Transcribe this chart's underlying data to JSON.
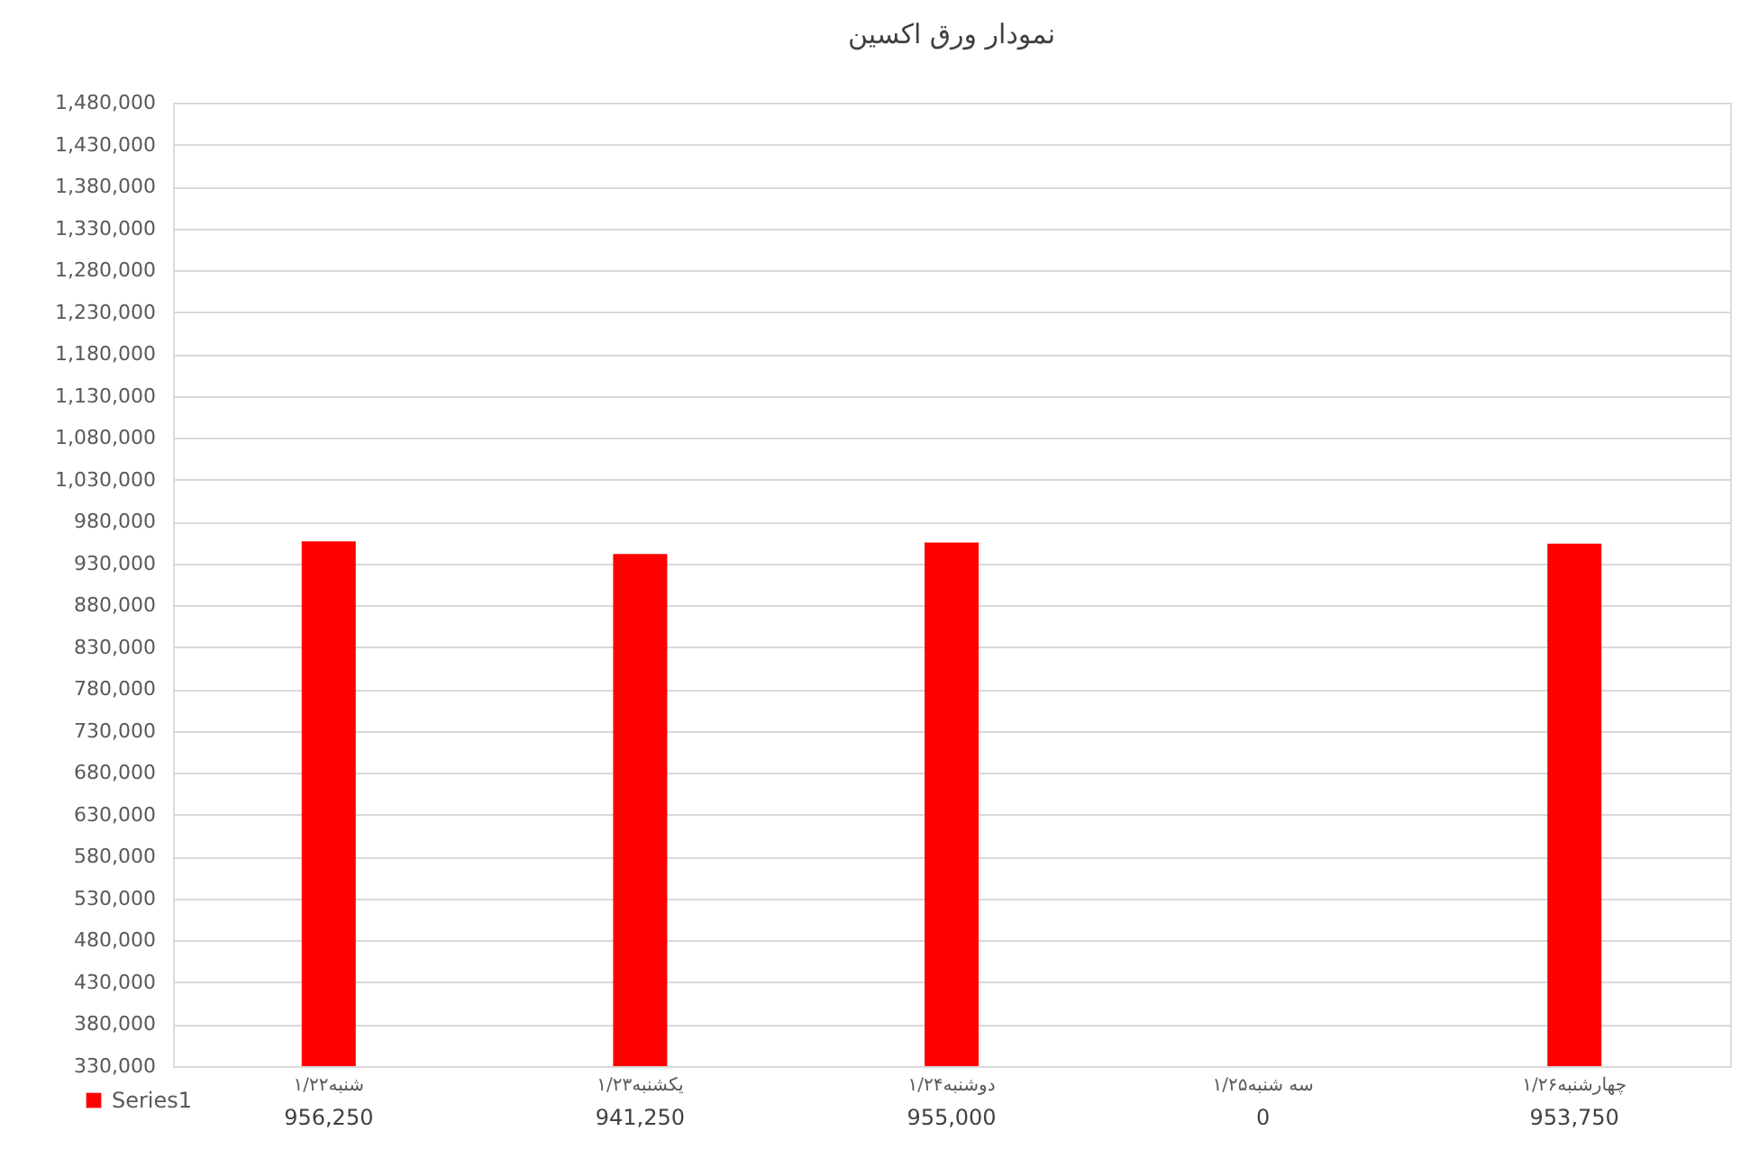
{
  "chart_data": {
    "type": "bar",
    "title": "نمودار ورق اکسین",
    "categories": [
      "شنبه۱/۲۲",
      "یکشنبه۱/۲۳",
      "دوشنبه۱/۲۴",
      "سه شنبه۱/۲۵",
      "چهارشنبه۱/۲۶"
    ],
    "series": [
      {
        "name": "Series1",
        "color": "#ff0000",
        "values": [
          956250,
          941250,
          955000,
          null,
          953750
        ],
        "value_labels": [
          "956,250",
          "941,250",
          "955,000",
          "0",
          "953,750"
        ]
      }
    ],
    "ylim": [
      330000,
      1480000
    ],
    "yticks": [
      {
        "value": 330000,
        "label": "330,000"
      },
      {
        "value": 380000,
        "label": "380,000"
      },
      {
        "value": 430000,
        "label": "430,000"
      },
      {
        "value": 480000,
        "label": "480,000"
      },
      {
        "value": 530000,
        "label": "530,000"
      },
      {
        "value": 580000,
        "label": "580,000"
      },
      {
        "value": 630000,
        "label": "630,000"
      },
      {
        "value": 680000,
        "label": "680,000"
      },
      {
        "value": 730000,
        "label": "730,000"
      },
      {
        "value": 780000,
        "label": "780,000"
      },
      {
        "value": 830000,
        "label": "830,000"
      },
      {
        "value": 880000,
        "label": "880,000"
      },
      {
        "value": 930000,
        "label": "930,000"
      },
      {
        "value": 980000,
        "label": "980,000"
      },
      {
        "value": 1030000,
        "label": "1,030,000"
      },
      {
        "value": 1080000,
        "label": "1,080,000"
      },
      {
        "value": 1130000,
        "label": "1,130,000"
      },
      {
        "value": 1180000,
        "label": "1,180,000"
      },
      {
        "value": 1230000,
        "label": "1,230,000"
      },
      {
        "value": 1280000,
        "label": "1,280,000"
      },
      {
        "value": 1330000,
        "label": "1,330,000"
      },
      {
        "value": 1380000,
        "label": "1,380,000"
      },
      {
        "value": 1430000,
        "label": "1,430,000"
      },
      {
        "value": 1480000,
        "label": "1,480,000"
      }
    ],
    "grid": "y",
    "legend": "bottom left"
  }
}
